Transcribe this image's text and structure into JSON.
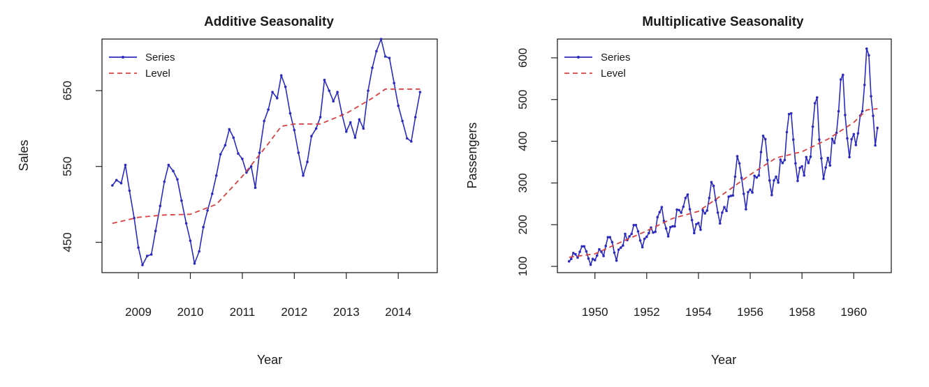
{
  "chart_data": [
    {
      "type": "line",
      "title": "Additive Seasonality",
      "xlabel": "Year",
      "ylabel": "Sales",
      "xlim": [
        2008.3,
        2014.75
      ],
      "ylim": [
        410,
        718
      ],
      "xticks": [
        2009,
        2010,
        2011,
        2012,
        2013,
        2014
      ],
      "yticks": [
        450,
        550,
        650
      ],
      "legend": {
        "position": "top-left",
        "entries": [
          "Series",
          "Level"
        ]
      },
      "colors": {
        "series": "#2b2bbf",
        "level": "#d94040"
      },
      "series": [
        {
          "name": "Series",
          "style": "solid-with-points",
          "x": [
            2008.5,
            2008.58,
            2008.67,
            2008.75,
            2008.83,
            2008.92,
            2009.0,
            2009.08,
            2009.17,
            2009.25,
            2009.33,
            2009.42,
            2009.5,
            2009.58,
            2009.67,
            2009.75,
            2009.83,
            2009.92,
            2010.0,
            2010.08,
            2010.17,
            2010.25,
            2010.33,
            2010.42,
            2010.5,
            2010.58,
            2010.67,
            2010.75,
            2010.83,
            2010.92,
            2011.0,
            2011.08,
            2011.17,
            2011.25,
            2011.33,
            2011.42,
            2011.5,
            2011.58,
            2011.67,
            2011.75,
            2011.83,
            2011.92,
            2012.0,
            2012.08,
            2012.17,
            2012.25,
            2012.33,
            2012.42,
            2012.5,
            2012.58,
            2012.67,
            2012.75,
            2012.83,
            2012.92,
            2013.0,
            2013.08,
            2013.17,
            2013.25,
            2013.33,
            2013.42,
            2013.5,
            2013.58,
            2013.67,
            2013.75,
            2013.83,
            2013.92,
            2014.0,
            2014.08,
            2014.17,
            2014.25,
            2014.33,
            2014.42
          ],
          "values": [
            525,
            532,
            528,
            552,
            518,
            482,
            443,
            420,
            432,
            434,
            465,
            498,
            530,
            552,
            544,
            533,
            505,
            475,
            452,
            422,
            438,
            470,
            492,
            514,
            538,
            566,
            578,
            599,
            588,
            567,
            560,
            542,
            550,
            522,
            568,
            610,
            625,
            648,
            640,
            670,
            655,
            620,
            598,
            568,
            538,
            556,
            590,
            600,
            615,
            664,
            650,
            636,
            648,
            618,
            596,
            608,
            588,
            612,
            600,
            650,
            680,
            702,
            718,
            695,
            693,
            660,
            630,
            610,
            587,
            583,
            615,
            648
          ]
        },
        {
          "name": "Level",
          "style": "dashed",
          "x": [
            2008.5,
            2009.0,
            2009.5,
            2010.0,
            2010.5,
            2011.0,
            2011.5,
            2011.75,
            2012.0,
            2012.5,
            2013.0,
            2013.5,
            2013.75,
            2014.0,
            2014.42
          ],
          "values": [
            475,
            483,
            486,
            487,
            500,
            537,
            580,
            603,
            606,
            606,
            620,
            640,
            652,
            652,
            652
          ]
        }
      ]
    },
    {
      "type": "line",
      "title": "Multiplicative Seasonality",
      "xlabel": "Year",
      "ylabel": "Passengers",
      "xlim": [
        1948.55,
        1961.45
      ],
      "ylim": [
        85,
        645
      ],
      "xticks": [
        1950,
        1952,
        1954,
        1956,
        1958,
        1960
      ],
      "yticks": [
        100,
        200,
        300,
        400,
        500,
        600
      ],
      "legend": {
        "position": "top-left",
        "entries": [
          "Series",
          "Level"
        ]
      },
      "colors": {
        "series": "#2b2bbf",
        "level": "#d94040"
      },
      "series": [
        {
          "name": "Series",
          "style": "solid-with-points",
          "x_start": 1949.0,
          "x_step": 0.08333,
          "values": [
            112,
            118,
            132,
            129,
            121,
            135,
            148,
            148,
            136,
            119,
            104,
            118,
            115,
            126,
            141,
            135,
            125,
            149,
            170,
            170,
            158,
            133,
            114,
            140,
            145,
            150,
            178,
            163,
            172,
            178,
            199,
            199,
            184,
            162,
            146,
            166,
            171,
            180,
            193,
            181,
            183,
            218,
            230,
            242,
            209,
            191,
            172,
            194,
            196,
            196,
            236,
            235,
            229,
            243,
            264,
            272,
            237,
            211,
            180,
            201,
            204,
            188,
            235,
            227,
            234,
            264,
            302,
            293,
            259,
            229,
            203,
            229,
            242,
            233,
            267,
            269,
            270,
            315,
            364,
            347,
            312,
            274,
            237,
            278,
            284,
            277,
            317,
            313,
            318,
            374,
            413,
            405,
            355,
            306,
            271,
            306,
            315,
            301,
            356,
            348,
            355,
            422,
            465,
            467,
            404,
            347,
            305,
            336,
            340,
            318,
            362,
            348,
            363,
            435,
            491,
            505,
            404,
            359,
            310,
            337,
            360,
            342,
            406,
            396,
            420,
            472,
            548,
            559,
            463,
            407,
            362,
            405,
            417,
            391,
            419,
            461,
            472,
            535,
            622,
            606,
            508,
            461,
            390,
            432
          ]
        },
        {
          "name": "Level",
          "style": "dashed",
          "x": [
            1949.0,
            1950.0,
            1951.0,
            1952.0,
            1953.0,
            1954.0,
            1955.0,
            1956.0,
            1957.0,
            1958.0,
            1959.0,
            1960.0,
            1960.5,
            1960.92
          ],
          "values": [
            122,
            130,
            158,
            185,
            215,
            232,
            275,
            320,
            360,
            375,
            405,
            445,
            475,
            478
          ]
        }
      ]
    }
  ]
}
